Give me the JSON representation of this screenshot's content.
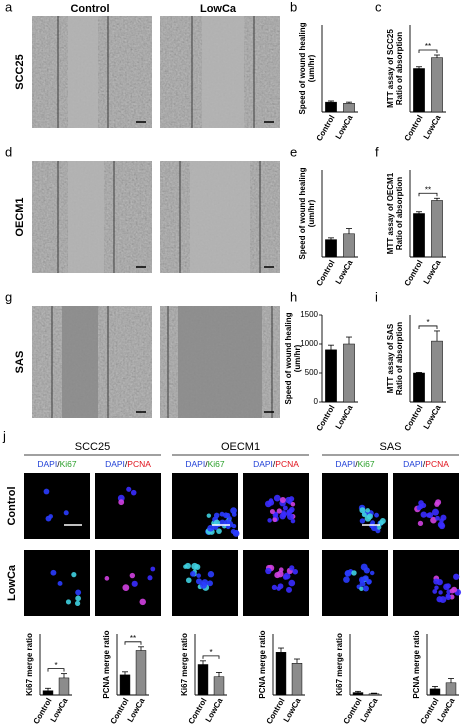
{
  "figure": {
    "panels": [
      "a",
      "b",
      "c",
      "d",
      "e",
      "f",
      "g",
      "h",
      "i",
      "j"
    ],
    "columns": [
      "Control",
      "LowCa"
    ],
    "rows": [
      "SCC25",
      "OECM1",
      "SAS"
    ],
    "j": {
      "cell_lines": [
        "SCC25",
        "OECM1",
        "SAS"
      ],
      "stains": {
        "dapi": "DAPI",
        "sep": "/",
        "ki67": "Ki67",
        "pcna": "PCNA"
      },
      "rows": [
        "Control",
        "LowCa"
      ]
    }
  },
  "chart_data": [
    {
      "type": "bar",
      "ylabel": [
        "Speed of wound healing",
        "(um/hr)"
      ],
      "categories": [
        "Control",
        "LowCa"
      ],
      "values": [
        170,
        150
      ],
      "errors": [
        20,
        20
      ],
      "colors": [
        "#000000",
        "#8c8c8c"
      ],
      "ylim": [
        0,
        1500
      ]
    },
    {
      "type": "bar",
      "ylabel": [
        "MTT assay of SCC25",
        "Ratio of absorption"
      ],
      "categories": [
        "Control",
        "LowCa"
      ],
      "values": [
        1.0,
        1.25
      ],
      "errors": [
        0.04,
        0.06
      ],
      "colors": [
        "#000000",
        "#8c8c8c"
      ],
      "ylim": [
        0,
        2
      ],
      "annotation": "**"
    },
    {
      "type": "bar",
      "ylabel": [
        "Speed of wound healing",
        "(um/hr)"
      ],
      "categories": [
        "Control",
        "LowCa"
      ],
      "values": [
        300,
        400
      ],
      "errors": [
        30,
        90
      ],
      "colors": [
        "#000000",
        "#8c8c8c"
      ],
      "ylim": [
        0,
        1500
      ]
    },
    {
      "type": "bar",
      "ylabel": [
        "MTT assay of OECM1",
        "Ratio of absorption"
      ],
      "categories": [
        "Control",
        "LowCa"
      ],
      "values": [
        1.0,
        1.3
      ],
      "errors": [
        0.04,
        0.05
      ],
      "colors": [
        "#000000",
        "#8c8c8c"
      ],
      "ylim": [
        0,
        2
      ],
      "annotation": "**"
    },
    {
      "type": "bar",
      "ylabel": [
        "Speed of wound healing",
        "(um/hr)"
      ],
      "categories": [
        "Control",
        "LowCa"
      ],
      "values": [
        900,
        1000
      ],
      "errors": [
        80,
        120
      ],
      "colors": [
        "#000000",
        "#8c8c8c"
      ],
      "ylim": [
        0,
        1500
      ],
      "yticks": [
        0,
        500,
        1000,
        1500
      ]
    },
    {
      "type": "bar",
      "ylabel": [
        "MTT assay of SAS",
        "Ratio of absorption"
      ],
      "categories": [
        "Control",
        "LowCa"
      ],
      "values": [
        1.0,
        2.1
      ],
      "errors": [
        0.02,
        0.35
      ],
      "colors": [
        "#000000",
        "#8c8c8c"
      ],
      "ylim": [
        0,
        3
      ],
      "annotation": "*"
    },
    {
      "type": "bar",
      "ylabel": [
        "Ki67 merge ratio"
      ],
      "categories": [
        "Control",
        "LowCa"
      ],
      "values": [
        0.07,
        0.28
      ],
      "errors": [
        0.04,
        0.07
      ],
      "colors": [
        "#000000",
        "#8c8c8c"
      ],
      "ylim": [
        0,
        1
      ],
      "annotation": "*"
    },
    {
      "type": "bar",
      "ylabel": [
        "PCNA merge ratio"
      ],
      "categories": [
        "Control",
        "LowCa"
      ],
      "values": [
        0.33,
        0.73
      ],
      "errors": [
        0.05,
        0.06
      ],
      "colors": [
        "#000000",
        "#8c8c8c"
      ],
      "ylim": [
        0,
        1
      ],
      "annotation": "**"
    },
    {
      "type": "bar",
      "ylabel": [
        "Ki67 merge ratio"
      ],
      "categories": [
        "Control",
        "LowCa"
      ],
      "values": [
        0.5,
        0.3
      ],
      "errors": [
        0.06,
        0.07
      ],
      "colors": [
        "#000000",
        "#8c8c8c"
      ],
      "ylim": [
        0,
        1
      ],
      "annotation": "*"
    },
    {
      "type": "bar",
      "ylabel": [
        "PCNA merge ratio"
      ],
      "categories": [
        "Control",
        "LowCa"
      ],
      "values": [
        0.7,
        0.52
      ],
      "errors": [
        0.07,
        0.07
      ],
      "colors": [
        "#000000",
        "#8c8c8c"
      ],
      "ylim": [
        0,
        1
      ]
    },
    {
      "type": "bar",
      "ylabel": [
        "Ki67 merge ratio"
      ],
      "categories": [
        "Control",
        "LowCa"
      ],
      "values": [
        0.04,
        0.02
      ],
      "errors": [
        0.02,
        0.01
      ],
      "colors": [
        "#000000",
        "#8c8c8c"
      ],
      "ylim": [
        0,
        1
      ]
    },
    {
      "type": "bar",
      "ylabel": [
        "PCNA merge ratio"
      ],
      "categories": [
        "Control",
        "LowCa"
      ],
      "values": [
        0.1,
        0.2
      ],
      "errors": [
        0.04,
        0.07
      ],
      "colors": [
        "#000000",
        "#8c8c8c"
      ],
      "ylim": [
        0,
        1
      ]
    }
  ]
}
